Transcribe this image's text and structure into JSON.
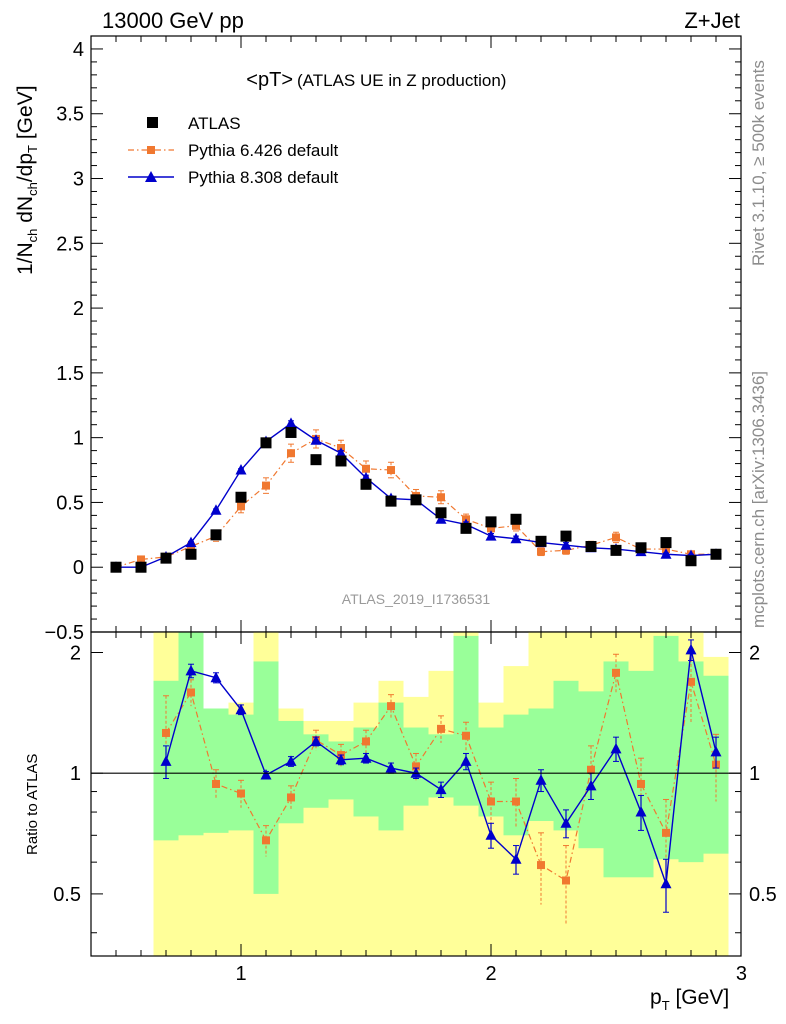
{
  "header": {
    "left": "13000 GeV pp",
    "right": "Z+Jet"
  },
  "side": {
    "rivet": "Rivet 3.1.10, ≥ 500k events",
    "mcplots": "mcplots.cern.ch [arXiv:1306.3436]"
  },
  "chart_data": [
    {
      "type": "scatter",
      "title": "<pT>",
      "subtitle": "(ATLAS UE in Z production)",
      "analysis": "ATLAS_2019_I1736531",
      "ylabel": "1/N_ch dN_ch/dp_T [GeV]",
      "xlabel": "p_T [GeV]",
      "xlim": [
        0.4,
        3.0
      ],
      "ylim": [
        -0.5,
        4.1
      ],
      "grid": false,
      "legend_position": "top-left",
      "x_ticks": [
        "1",
        "2",
        "3"
      ],
      "y_ticks": [
        "−0.5",
        "0",
        "0.5",
        "1",
        "1.5",
        "2",
        "2.5",
        "3",
        "3.5",
        "4"
      ],
      "x": [
        0.5,
        0.6,
        0.7,
        0.8,
        0.9,
        1.0,
        1.1,
        1.2,
        1.3,
        1.4,
        1.5,
        1.6,
        1.7,
        1.8,
        1.9,
        2.0,
        2.1,
        2.2,
        2.3,
        2.4,
        2.5,
        2.6,
        2.7,
        2.8,
        2.9
      ],
      "series": [
        {
          "name": "ATLAS",
          "color": "#000000",
          "marker": "square",
          "values": [
            0.0,
            0.0,
            0.07,
            0.1,
            0.25,
            0.54,
            0.96,
            1.04,
            0.83,
            0.82,
            0.64,
            0.51,
            0.52,
            0.42,
            0.3,
            0.35,
            0.37,
            0.2,
            0.24,
            0.16,
            0.13,
            0.15,
            0.19,
            0.05,
            0.1
          ]
        },
        {
          "name": "Pythia 6.426 default",
          "color": "#f07830",
          "marker": "small-square",
          "linestyle": "dash-dot",
          "values": [
            0.0,
            0.06,
            0.08,
            0.16,
            0.24,
            0.47,
            0.63,
            0.88,
            0.99,
            0.92,
            0.76,
            0.75,
            0.55,
            0.54,
            0.37,
            0.3,
            0.32,
            0.12,
            0.13,
            0.17,
            0.23,
            0.14,
            0.14,
            0.1,
            0.1
          ],
          "errors": [
            0.01,
            0.02,
            0.02,
            0.03,
            0.04,
            0.05,
            0.06,
            0.07,
            0.07,
            0.06,
            0.06,
            0.06,
            0.05,
            0.05,
            0.04,
            0.04,
            0.04,
            0.03,
            0.03,
            0.03,
            0.04,
            0.03,
            0.03,
            0.02,
            0.02
          ]
        },
        {
          "name": "Pythia 8.308 default",
          "color": "#0000cc",
          "marker": "triangle",
          "linestyle": "solid",
          "values": [
            0.0,
            0.0,
            0.08,
            0.19,
            0.44,
            0.75,
            0.97,
            1.11,
            0.98,
            0.88,
            0.69,
            0.53,
            0.52,
            0.37,
            0.33,
            0.24,
            0.22,
            0.19,
            0.17,
            0.15,
            0.14,
            0.12,
            0.1,
            0.09,
            0.1
          ],
          "errors": [
            0.0,
            0.01,
            0.01,
            0.01,
            0.01,
            0.01,
            0.02,
            0.02,
            0.02,
            0.02,
            0.02,
            0.02,
            0.02,
            0.02,
            0.02,
            0.02,
            0.02,
            0.02,
            0.02,
            0.01,
            0.01,
            0.01,
            0.01,
            0.01,
            0.01
          ]
        }
      ]
    },
    {
      "type": "scatter",
      "ylabel": "Ratio to ATLAS",
      "xlabel": "p_T [GeV]",
      "xlim": [
        0.4,
        3.0
      ],
      "ylim": [
        0.35,
        2.25
      ],
      "reference_line": 1.0,
      "y_ticks": [
        "0.5",
        "1",
        "2"
      ],
      "x_ticks": [
        "1",
        "2",
        "3"
      ],
      "band_colors": {
        "inner": "#99ff99",
        "outer": "#ffff99"
      },
      "x": [
        0.7,
        0.8,
        0.9,
        1.0,
        1.1,
        1.2,
        1.3,
        1.4,
        1.5,
        1.6,
        1.7,
        1.8,
        1.9,
        2.0,
        2.1,
        2.2,
        2.3,
        2.4,
        2.5,
        2.6,
        2.7,
        2.8,
        2.9
      ],
      "uncertainty_bands": {
        "inner_low": [
          0.68,
          0.7,
          0.71,
          0.72,
          0.5,
          0.75,
          0.82,
          0.86,
          0.78,
          0.72,
          0.83,
          0.87,
          0.83,
          0.78,
          0.7,
          0.76,
          0.72,
          0.65,
          0.55,
          0.55,
          0.61,
          0.6,
          0.63
        ],
        "inner_high": [
          1.7,
          2.25,
          1.45,
          1.4,
          1.9,
          1.35,
          1.25,
          1.2,
          1.3,
          1.5,
          1.3,
          1.25,
          2.2,
          1.3,
          1.4,
          1.45,
          1.7,
          1.6,
          1.9,
          1.8,
          2.2,
          1.9,
          1.75
        ],
        "outer_low": [
          0.35,
          0.35,
          0.35,
          0.35,
          0.35,
          0.35,
          0.35,
          0.35,
          0.35,
          0.35,
          0.35,
          0.35,
          0.35,
          0.35,
          0.35,
          0.35,
          0.35,
          0.35,
          0.35,
          0.35,
          0.35,
          0.35,
          0.35
        ],
        "outer_high": [
          2.25,
          2.25,
          1.45,
          1.5,
          2.25,
          1.45,
          1.35,
          1.35,
          1.5,
          1.7,
          1.55,
          1.8,
          2.25,
          1.5,
          1.85,
          2.25,
          2.25,
          2.25,
          2.25,
          2.25,
          2.25,
          2.25,
          1.95
        ]
      },
      "series": [
        {
          "name": "Pythia 6.426 default",
          "color": "#f07830",
          "values": [
            1.26,
            1.59,
            0.94,
            0.89,
            0.68,
            0.87,
            1.21,
            1.11,
            1.2,
            1.47,
            1.04,
            1.29,
            1.24,
            0.85,
            0.85,
            0.59,
            0.54,
            1.02,
            1.78,
            0.94,
            0.71,
            1.69,
            1.05
          ],
          "errors": [
            0.3,
            0.12,
            0.08,
            0.07,
            0.06,
            0.06,
            0.07,
            0.07,
            0.08,
            0.1,
            0.08,
            0.1,
            0.1,
            0.1,
            0.12,
            0.12,
            0.12,
            0.15,
            0.2,
            0.15,
            0.15,
            0.35,
            0.2
          ]
        },
        {
          "name": "Pythia 8.308 default",
          "color": "#0000cc",
          "values": [
            1.07,
            1.8,
            1.73,
            1.44,
            0.99,
            1.07,
            1.2,
            1.08,
            1.09,
            1.03,
            1.0,
            0.91,
            1.07,
            0.7,
            0.61,
            0.96,
            0.75,
            0.93,
            1.15,
            0.8,
            0.53,
            2.03,
            1.13
          ],
          "errors": [
            0.1,
            0.07,
            0.05,
            0.04,
            0.02,
            0.03,
            0.03,
            0.03,
            0.03,
            0.03,
            0.03,
            0.04,
            0.05,
            0.05,
            0.05,
            0.06,
            0.06,
            0.07,
            0.08,
            0.08,
            0.08,
            0.12,
            0.1
          ]
        }
      ]
    }
  ]
}
